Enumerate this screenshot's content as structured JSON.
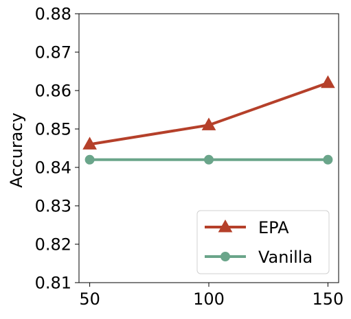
{
  "chart_data": {
    "type": "line",
    "title": "",
    "xlabel": "",
    "ylabel": "Accuracy",
    "x": [
      50,
      100,
      150
    ],
    "xlim": [
      45.5,
      154.5
    ],
    "ylim": [
      0.81,
      0.88
    ],
    "xticks": [
      50,
      100,
      150
    ],
    "xtick_labels": [
      "50",
      "100",
      "150"
    ],
    "yticks": [
      0.81,
      0.82,
      0.83,
      0.84,
      0.85,
      0.86,
      0.87,
      0.88
    ],
    "ytick_labels": [
      "0.81",
      "0.82",
      "0.83",
      "0.84",
      "0.85",
      "0.86",
      "0.87",
      "0.88"
    ],
    "grid": false,
    "legend_position": "bottom-right",
    "series": [
      {
        "name": "EPA",
        "values": [
          0.846,
          0.851,
          0.862
        ],
        "color": "#b5402a",
        "marker": "triangle"
      },
      {
        "name": "Vanilla",
        "values": [
          0.842,
          0.842,
          0.842
        ],
        "color": "#6aa58a",
        "marker": "circle"
      }
    ]
  }
}
